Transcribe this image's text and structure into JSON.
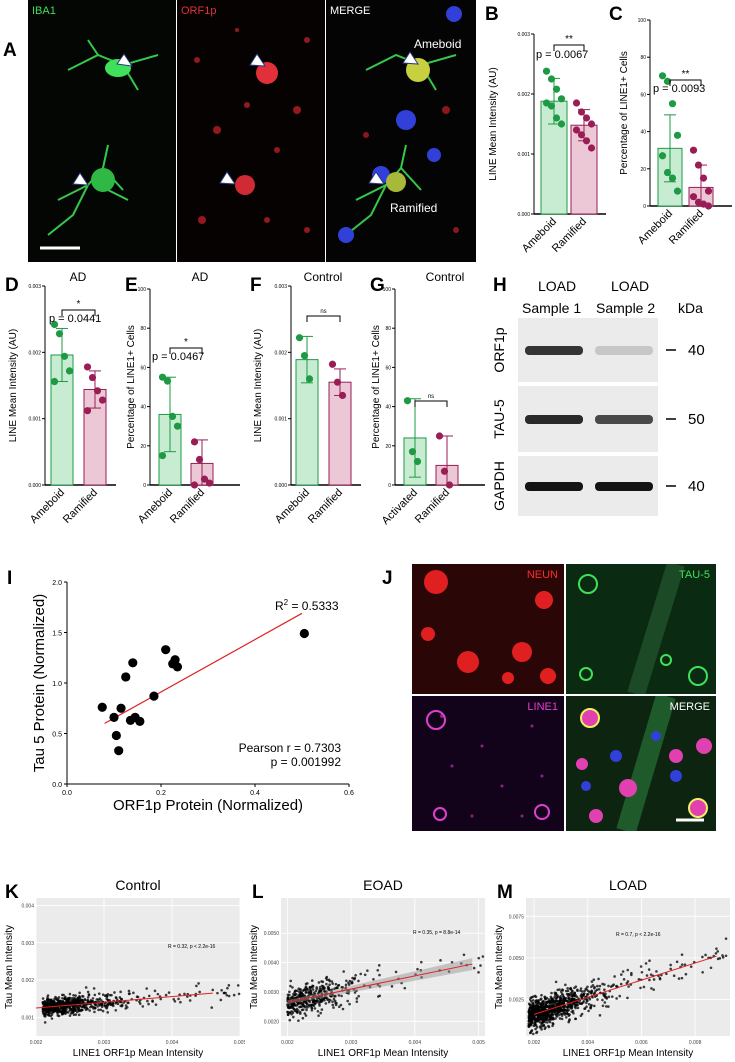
{
  "panel_labels": {
    "A": "A",
    "B": "B",
    "C": "C",
    "D": "D",
    "E": "E",
    "F": "F",
    "G": "G",
    "H": "H",
    "I": "I",
    "J": "J",
    "K": "K",
    "L": "L",
    "M": "M"
  },
  "micrograph_a": {
    "channels": [
      "IBA1",
      "ORF1p",
      "MERGE"
    ],
    "annotations": {
      "ameboid": "Ameboid",
      "ramified": "Ramified"
    },
    "colors": {
      "iba1": "#3fe05a",
      "orf1p": "#e0303a",
      "merge_label": "#ffffff"
    }
  },
  "micrograph_j": {
    "channels": [
      "NEUN",
      "TAU-5",
      "LINE1",
      "MERGE"
    ],
    "colors": {
      "neun": "#ff2a2a",
      "tau5": "#3fe05a",
      "line1": "#e040d0",
      "merge": "#ffffff"
    }
  },
  "western_blot": {
    "columns": [
      {
        "line1": "LOAD",
        "line2": "Sample 1"
      },
      {
        "line1": "LOAD",
        "line2": "Sample 2"
      }
    ],
    "unit": "kDa",
    "rows": [
      {
        "label": "ORF1p",
        "kda": "40",
        "band_intensity": [
          0.85,
          0.15
        ]
      },
      {
        "label": "TAU-5",
        "kda": "50",
        "band_intensity": [
          0.9,
          0.75
        ]
      },
      {
        "label": "GAPDH",
        "kda": "40",
        "band_intensity": [
          1.0,
          1.0
        ]
      }
    ]
  },
  "chart_data": [
    {
      "panel": "B",
      "type": "bar",
      "title": "",
      "categories": [
        "Ameboid",
        "Ramified"
      ],
      "values": [
        0.00188,
        0.00148
      ],
      "errors": [
        0.00038,
        0.00026
      ],
      "points": [
        [
          0.00238,
          0.00225,
          0.00208,
          0.00192,
          0.00185,
          0.0018,
          0.0016,
          0.0015
        ],
        [
          0.00185,
          0.0017,
          0.0016,
          0.0015,
          0.0014,
          0.00132,
          0.00122,
          0.0011
        ]
      ],
      "ylabel": "LINE Mean Intensity (AU)",
      "ylim": [
        0,
        0.003
      ],
      "yticks": [
        "0.000",
        "0.001",
        "0.002",
        "0.003"
      ],
      "sig": "**",
      "pvalue": "p = 0.0067"
    },
    {
      "panel": "C",
      "type": "bar",
      "title": "",
      "categories": [
        "Ameboid",
        "Ramified"
      ],
      "values": [
        31,
        10
      ],
      "errors": [
        18,
        12
      ],
      "points": [
        [
          70,
          67,
          55,
          38,
          27,
          18,
          15,
          8
        ],
        [
          30,
          22,
          15,
          8,
          5,
          2,
          1,
          0
        ]
      ],
      "ylabel": "Percentage of LINE1+ Cells",
      "ylim": [
        0,
        100
      ],
      "yticks": [
        "0",
        "20",
        "40",
        "60",
        "80",
        "100"
      ],
      "sig": "**",
      "pvalue": "p = 0.0093"
    },
    {
      "panel": "D",
      "type": "bar",
      "title": "AD",
      "categories": [
        "Ameboid",
        "Ramified"
      ],
      "values": [
        0.00196,
        0.00144
      ],
      "errors": [
        0.0004,
        0.00028
      ],
      "points": [
        [
          0.00242,
          0.00228,
          0.00194,
          0.00172,
          0.00156
        ],
        [
          0.00178,
          0.00162,
          0.00142,
          0.00128,
          0.00112
        ]
      ],
      "ylabel": "LINE Mean Intensity (AU)",
      "ylim": [
        0,
        0.003
      ],
      "yticks": [
        "0.000",
        "0.001",
        "0.002",
        "0.003"
      ],
      "sig": "*",
      "pvalue": "p = 0.0441"
    },
    {
      "panel": "E",
      "type": "bar",
      "title": "AD",
      "categories": [
        "Ameboid",
        "Ramified"
      ],
      "values": [
        36,
        11
      ],
      "errors": [
        19,
        12
      ],
      "points": [
        [
          55,
          53,
          35,
          30,
          15
        ],
        [
          22,
          13,
          3,
          1,
          0
        ]
      ],
      "ylabel": "Percentage of LINE1+ Cells",
      "ylim": [
        0,
        100
      ],
      "yticks": [
        "0",
        "20",
        "40",
        "60",
        "80",
        "100"
      ],
      "sig": "*",
      "pvalue": "p = 0.0467"
    },
    {
      "panel": "F",
      "type": "bar",
      "title": "Control",
      "categories": [
        "Ameboid",
        "Ramified"
      ],
      "values": [
        0.00189,
        0.00155
      ],
      "errors": [
        0.00035,
        0.0002
      ],
      "points": [
        [
          0.00222,
          0.00195,
          0.0016
        ],
        [
          0.00182,
          0.00155,
          0.00135
        ]
      ],
      "ylabel": "LINE Mean Intensity (AU)",
      "ylim": [
        0,
        0.003
      ],
      "yticks": [
        "0.000",
        "0.001",
        "0.002",
        "0.003"
      ],
      "sig": "ns",
      "pvalue": ""
    },
    {
      "panel": "G",
      "type": "bar",
      "title": "Control",
      "categories": [
        "Activated",
        "Ramified"
      ],
      "values": [
        24,
        10
      ],
      "errors": [
        20,
        15
      ],
      "points": [
        [
          43,
          17,
          12
        ],
        [
          25,
          7,
          0
        ]
      ],
      "ylabel": "Percentage of LINE1+ Cells",
      "ylim": [
        0,
        100
      ],
      "yticks": [
        "0",
        "20",
        "40",
        "60",
        "80",
        "100"
      ],
      "sig": "ns",
      "pvalue": ""
    },
    {
      "panel": "I",
      "type": "scatter",
      "title": "",
      "x": [
        0.075,
        0.1,
        0.105,
        0.11,
        0.115,
        0.125,
        0.135,
        0.14,
        0.145,
        0.155,
        0.185,
        0.21,
        0.225,
        0.23,
        0.235,
        0.505
      ],
      "y": [
        0.76,
        0.66,
        0.48,
        0.33,
        0.75,
        1.06,
        0.63,
        1.2,
        0.66,
        0.62,
        0.87,
        1.33,
        1.19,
        1.23,
        1.16,
        1.49
      ],
      "fit": {
        "x": [
          0.08,
          0.5
        ],
        "y": [
          0.6,
          1.69
        ]
      },
      "xlabel": "ORF1p Protein (Normalized)",
      "ylabel": "Tau 5 Protein (Normalized)",
      "xlim": [
        0,
        0.6
      ],
      "ylim": [
        0,
        2.0
      ],
      "xticks": [
        "0.0",
        "0.2",
        "0.4",
        "0.6"
      ],
      "yticks": [
        "0.0",
        "0.5",
        "1.0",
        "1.5",
        "2.0"
      ],
      "r2_prefix": "R",
      "r2_exp": "2",
      "r2_value": " = 0.5333",
      "pearson": "Pearson r = 0.7303",
      "pvalue": "p = 0.001992"
    },
    {
      "panel": "K",
      "type": "scatter",
      "title": "Control",
      "xlabel": "LINE1 ORF1p Mean Intensity",
      "ylabel": "Tau Mean Intensity",
      "xlim": [
        0.002,
        0.005
      ],
      "ylim": [
        0.0005,
        0.0042
      ],
      "xticks": [
        "0.002",
        "0.003",
        "0.004",
        "0.005"
      ],
      "yticks": [
        "0.001",
        "0.002",
        "0.003",
        "0.004"
      ],
      "fit": {
        "x": [
          0.002,
          0.0046
        ],
        "y": [
          0.00125,
          0.00165
        ]
      },
      "stat": "R = 0.32, p < 2.2e-16"
    },
    {
      "panel": "L",
      "type": "scatter",
      "title": "EOAD",
      "xlabel": "LINE1 ORF1p Mean Intensity",
      "ylabel": "Tau Mean Intensity",
      "xlim": [
        0.0019,
        0.0051
      ],
      "ylim": [
        0.0015,
        0.0062
      ],
      "xticks": [
        "0.002",
        "0.003",
        "0.004",
        "0.005"
      ],
      "yticks": [
        "0.0020",
        "0.0030",
        "0.0040",
        "0.0050"
      ],
      "fit": {
        "x": [
          0.002,
          0.0049
        ],
        "y": [
          0.00265,
          0.00395
        ]
      },
      "stat": "R = 0.35, p = 8.8e-14"
    },
    {
      "panel": "M",
      "type": "scatter",
      "title": "LOAD",
      "xlabel": "LINE1 ORF1p Mean Intensity",
      "ylabel": "Tau Mean Intensity",
      "xlim": [
        0.0017,
        0.0093
      ],
      "ylim": [
        0.0003,
        0.0086
      ],
      "xticks": [
        "0.002",
        "0.004",
        "0.006",
        "0.008"
      ],
      "yticks": [
        "0.0025",
        "0.0050",
        "0.0075"
      ],
      "fit": {
        "x": [
          0.002,
          0.0088
        ],
        "y": [
          0.0016,
          0.0051
        ]
      },
      "stat": "R = 0.7, p < 2.2e-16"
    }
  ]
}
